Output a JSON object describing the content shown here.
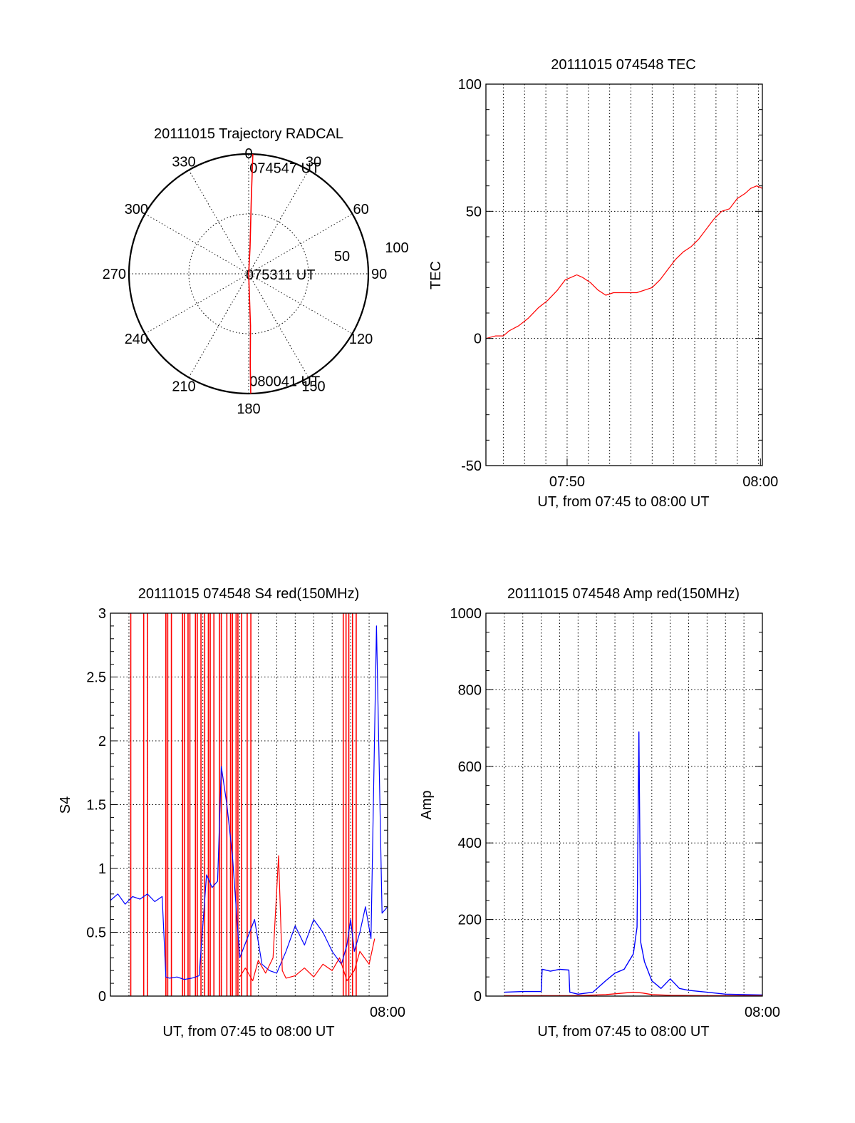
{
  "figure": {
    "date": "20111015",
    "colors": {
      "red": "#ff0000",
      "blue": "#0000ff",
      "axes": "#000000"
    }
  },
  "chart_data": [
    {
      "type": "polar",
      "title": "20111015 Trajectory RADCAL",
      "azimuth_labels": [
        "0",
        "30",
        "60",
        "90",
        "120",
        "150",
        "180",
        "210",
        "240",
        "270",
        "300",
        "330"
      ],
      "radius_labels": [
        "50",
        "100"
      ],
      "point_labels": [
        {
          "text": "074547 UT",
          "azimuth": 2,
          "elevation": 82
        },
        {
          "text": "075311 UT",
          "azimuth": 90,
          "elevation": 0
        },
        {
          "text": "080041 UT",
          "azimuth": 178,
          "elevation": 82
        }
      ],
      "series": [
        {
          "color": "#ff0000",
          "azimuth": [
            2,
            2,
            3,
            90,
            178,
            179,
            179
          ],
          "elevation": [
            92,
            60,
            20,
            0,
            40,
            70,
            92
          ]
        }
      ]
    },
    {
      "type": "line",
      "title": "20111015 074548 TEC",
      "xlabel": "UT, from 07:45 to 08:00 UT",
      "ylabel": "TEC",
      "xlim": [
        45.8,
        60.1
      ],
      "ylim": [
        -50,
        100
      ],
      "x_ticks": [
        {
          "value": 50,
          "label": "07:50"
        },
        {
          "value": 60,
          "label": "08:00"
        }
      ],
      "y_ticks": [
        {
          "value": -50,
          "label": "-50"
        },
        {
          "value": 0,
          "label": "0"
        },
        {
          "value": 50,
          "label": "50"
        },
        {
          "value": 100,
          "label": "100"
        }
      ],
      "grid_x": [
        46.7,
        47.8,
        48.9,
        50.0,
        51.1,
        52.2,
        53.3,
        54.4,
        55.5,
        56.6,
        57.7,
        58.8,
        59.9
      ],
      "series": [
        {
          "color": "#ff0000",
          "x": [
            45.8,
            46.3,
            46.7,
            47.0,
            47.5,
            48.0,
            48.5,
            49.0,
            49.5,
            49.9,
            50.2,
            50.5,
            50.8,
            51.2,
            51.6,
            52.0,
            52.4,
            52.8,
            53.2,
            53.6,
            54.0,
            54.4,
            54.8,
            55.2,
            55.6,
            56.0,
            56.4,
            56.8,
            57.2,
            57.6,
            58.0,
            58.4,
            58.8,
            59.2,
            59.5,
            59.8,
            60.1
          ],
          "y": [
            0,
            1,
            1,
            3,
            5,
            8,
            12,
            15,
            19,
            23,
            24,
            25,
            24,
            22,
            19,
            17,
            18,
            18,
            18,
            18,
            19,
            20,
            23,
            27,
            31,
            34,
            36,
            39,
            43,
            47,
            50,
            51,
            55,
            57,
            59,
            60,
            59
          ]
        }
      ]
    },
    {
      "type": "line",
      "title": "20111015 074548 S4 red(150MHz)",
      "xlabel": "UT, from 07:45 to 08:00 UT",
      "ylabel": "S4",
      "xlim": [
        45.0,
        60.0
      ],
      "ylim": [
        0,
        3
      ],
      "x_ticks": [
        {
          "value": 60,
          "label": "08:00"
        }
      ],
      "y_ticks": [
        {
          "value": 0,
          "label": "0"
        },
        {
          "value": 0.5,
          "label": "0.5"
        },
        {
          "value": 1,
          "label": "1"
        },
        {
          "value": 1.5,
          "label": "1.5"
        },
        {
          "value": 2,
          "label": "2"
        },
        {
          "value": 2.5,
          "label": "2.5"
        },
        {
          "value": 3,
          "label": "3"
        }
      ],
      "grid_x": [
        46.0,
        47.0,
        48.0,
        49.0,
        50.0,
        51.0,
        52.0,
        53.0,
        54.0,
        55.0,
        56.0,
        57.0,
        58.0,
        59.0,
        60.0
      ],
      "spike_lines": {
        "color": "#ff0000",
        "x": [
          46.1,
          46.8,
          47.0,
          48.0,
          48.1,
          48.3,
          48.9,
          49.0,
          49.2,
          49.3,
          49.6,
          49.7,
          49.9,
          50.1,
          50.3,
          50.4,
          50.6,
          50.9,
          51.0,
          51.3,
          51.5,
          51.6,
          51.8,
          51.9,
          52.1,
          52.4,
          52.6,
          57.6,
          57.75,
          57.9,
          58.1,
          58.3
        ]
      },
      "series": [
        {
          "color": "#0000ff",
          "x": [
            45.0,
            45.4,
            45.8,
            46.2,
            46.6,
            47.0,
            47.4,
            47.8,
            48.0,
            48.2,
            48.6,
            49.0,
            49.4,
            49.8,
            50.2,
            50.5,
            50.8,
            51.0,
            51.3,
            51.6,
            52.0,
            52.4,
            52.8,
            53.2,
            53.6,
            54.0,
            54.5,
            55.0,
            55.5,
            56.0,
            56.5,
            57.0,
            57.5,
            57.8,
            58.0,
            58.2,
            58.5,
            58.8,
            59.1,
            59.4,
            59.7,
            60.0
          ],
          "y": [
            0.75,
            0.8,
            0.72,
            0.78,
            0.76,
            0.8,
            0.74,
            0.78,
            0.15,
            0.14,
            0.15,
            0.13,
            0.14,
            0.16,
            0.95,
            0.85,
            0.9,
            1.8,
            1.5,
            1.1,
            0.3,
            0.45,
            0.6,
            0.25,
            0.2,
            0.18,
            0.35,
            0.55,
            0.4,
            0.6,
            0.5,
            0.35,
            0.25,
            0.4,
            0.6,
            0.35,
            0.5,
            0.7,
            0.45,
            2.9,
            0.65,
            0.7
          ]
        },
        {
          "color": "#ff0000",
          "x": [
            52.0,
            52.3,
            52.7,
            53.0,
            53.4,
            53.8,
            54.1,
            54.3,
            54.5,
            55.0,
            55.5,
            56.0,
            56.5,
            57.0,
            57.4,
            57.8,
            58.2,
            58.5,
            59.0,
            59.3
          ],
          "y": [
            0.15,
            0.22,
            0.12,
            0.28,
            0.18,
            0.3,
            1.1,
            0.2,
            0.14,
            0.16,
            0.22,
            0.15,
            0.25,
            0.2,
            0.3,
            0.12,
            0.2,
            0.35,
            0.25,
            0.45
          ]
        }
      ]
    },
    {
      "type": "line",
      "title": "20111015 074548 Amp red(150MHz)",
      "xlabel": "UT, from 07:45 to 08:00 UT",
      "ylabel": "Amp",
      "xlim": [
        45.0,
        60.0
      ],
      "ylim": [
        0,
        1000
      ],
      "x_ticks": [
        {
          "value": 60,
          "label": "08:00"
        }
      ],
      "y_ticks": [
        {
          "value": 0,
          "label": "0"
        },
        {
          "value": 200,
          "label": "200"
        },
        {
          "value": 400,
          "label": "400"
        },
        {
          "value": 600,
          "label": "600"
        },
        {
          "value": 800,
          "label": "800"
        },
        {
          "value": 1000,
          "label": "1000"
        }
      ],
      "grid_x": [
        46.0,
        47.0,
        48.0,
        49.0,
        50.0,
        51.0,
        52.0,
        53.0,
        54.0,
        55.0,
        56.0,
        57.0,
        58.0,
        59.0,
        60.0
      ],
      "series": [
        {
          "color": "#0000ff",
          "x": [
            46.0,
            47.0,
            48.0,
            48.05,
            48.5,
            49.0,
            49.5,
            49.55,
            50.0,
            50.8,
            51.5,
            52.0,
            52.5,
            53.0,
            53.2,
            53.3,
            53.4,
            53.6,
            54.0,
            54.5,
            55.0,
            55.5,
            56.0,
            57.0,
            58.0,
            60.0
          ],
          "y": [
            10,
            12,
            12,
            70,
            65,
            70,
            68,
            10,
            5,
            10,
            40,
            60,
            70,
            110,
            180,
            690,
            140,
            90,
            40,
            20,
            45,
            20,
            15,
            10,
            5,
            3
          ]
        },
        {
          "color": "#ff0000",
          "x": [
            46.0,
            48.0,
            49.5,
            50.5,
            51.5,
            52.0,
            52.5,
            53.0,
            53.5,
            54.0,
            55.0,
            57.0,
            60.0
          ],
          "y": [
            1,
            1,
            1,
            2,
            4,
            6,
            8,
            10,
            8,
            4,
            2,
            1,
            1
          ]
        }
      ]
    }
  ]
}
